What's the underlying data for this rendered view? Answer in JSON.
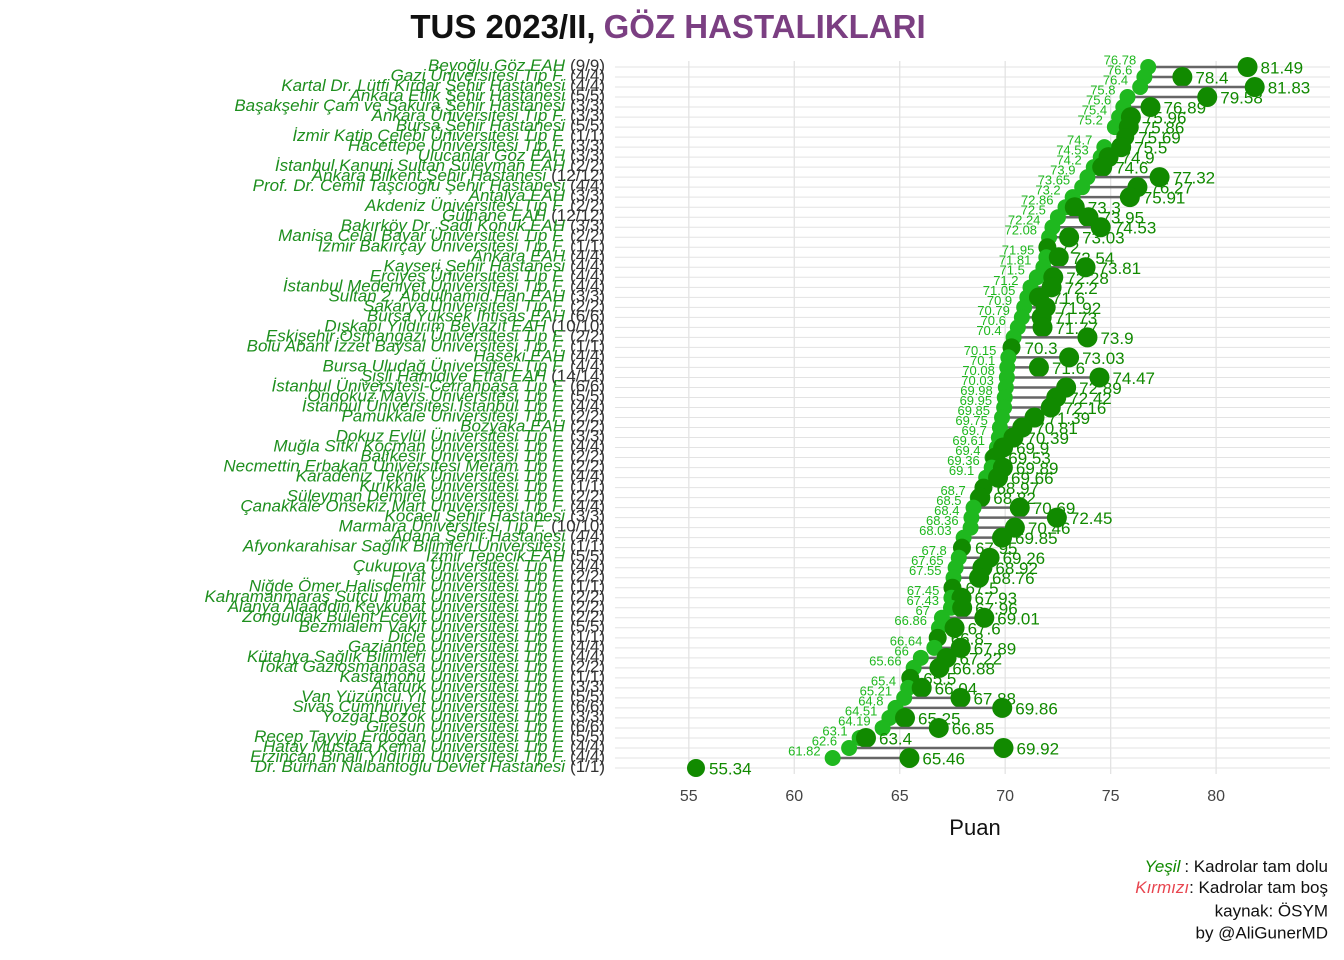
{
  "chart_data": {
    "type": "dumbbell",
    "title": "TUS 2023/II,",
    "title_highlight": "GÖZ HASTALIKLARI",
    "title_highlight_color": "#7b3f82",
    "x_label": "Puan",
    "xlim": [
      51.5,
      85.4
    ],
    "xticks": [
      55,
      60,
      65,
      70,
      75,
      80
    ],
    "grid": true,
    "low_color": "#1fb81f",
    "high_color": "#118a00",
    "segment_color": "#666666",
    "categories": [
      "Beyoğlu Göz EAH",
      "Gazi Üniversitesi Tıp F.",
      "Kartal Dr. Lütfi Kırdar Şehir Hastanesi",
      "Ankara Etlik Şehir Hastanesi",
      "Başakşehir Çam ve Sakura Şehir Hastanesi",
      "Ankara Üniversitesi Tıp F.",
      "Bursa Şehir Hastanesi",
      "İzmir Katip Çelebi Üniversitesi Tıp F.",
      "Hacettepe Üniversitesi Tıp F.",
      "Ulucanlar Göz EAH",
      "İstanbul Kanuni Sultan Süleyman EAH",
      "Ankara Bilkent Şehir Hastanesi",
      "Prof. Dr. Cemil Taşcıoğlu Şehir Hastanesi",
      "Antalya EAH",
      "Akdeniz Üniversitesi Tıp F.",
      "Gülhane EAH",
      "Bakırköy Dr. Sadi Konuk EAH",
      "Manisa Celal Bayar Üniversitesi Tıp F.",
      "İzmir Bakırçay Üniversitesi Tıp F.",
      "Ankara EAH",
      "Kayseri Şehir Hastanesi",
      "Erciyes Üniversitesi Tıp F.",
      "İstanbul Medeniyet Üniversitesi Tıp F.",
      "Sultan 2. Abdülhamid Han EAH",
      "Sakarya Üniversitesi Tıp F.",
      "Bursa Yüksek İhtisas EAH",
      "Dışkapı Yıldırım Beyazıt EAH",
      "Eskişehir Osmangazi Üniversitesi Tıp F.",
      "Bolu Abant İzzet Baysal Üniversitesi Tıp F.",
      "Haseki EAH",
      "Bursa Uludağ Üniversitesi Tıp F.",
      "Şişli Hamidiye Etfal EAH",
      "İstanbul Üniversitesi-Cerrahpaşa Tıp F.",
      "Ondokuz Mayıs Üniversitesi Tıp F.",
      "İstanbul Üniversitesi İstanbul Tıp F.",
      "Pamukkale Üniversitesi Tıp F.",
      "Bozyaka EAH",
      "Dokuz Eylül Üniversitesi Tıp F.",
      "Muğla Sıtkı Koçman Üniversitesi Tıp F.",
      "Balıkesir Üniversitesi Tıp F.",
      "Necmettin Erbakan Üniversitesi Meram Tıp F.",
      "Karadeniz Teknik Üniversitesi Tıp F.",
      "Kırıkkale Üniversitesi Tıp F.",
      "Süleyman Demirel Üniversitesi Tıp F.",
      "Çanakkale Onsekiz Mart Üniversitesi Tıp F.",
      "Kocaeli Şehir Hastanesi",
      "Marmara Üniversitesi Tıp F.",
      "Adana Şehir Hastanesi",
      "Afyonkarahisar Sağlık Bilimleri Üniversitesi",
      "İzmir Tepecik EAH",
      "Çukurova Üniversitesi Tıp F.",
      "Fırat Üniversitesi Tıp F.",
      "Niğde Ömer Halisdemir Üniversitesi Tıp F.",
      "Kahramanmaraş Sütçü İmam Üniversitesi Tıp F.",
      "Alanya Alaaddin Keykubat Üniversitesi Tıp F.",
      "Zonguldak Bülent Ecevit Üniversitesi Tıp F.",
      "Bezmialem Vakıf Üniversitesi Tıp F.",
      "Dicle Üniversitesi Tıp F.",
      "Gaziantep Üniversitesi Tıp F.",
      "Kütahya Sağlık Bilimleri Üniversitesi Tıp F.",
      "Tokat Gaziosmanpaşa Üniversitesi Tıp F.",
      "Kastamonu Üniversitesi Tıp F.",
      "Atatürk Üniversitesi Tıp F.",
      "Van Yüzüncü Yıl Üniversitesi Tıp F.",
      "Sivas Cumhuriyet Üniversitesi Tıp F.",
      "Yozgat Bozok Üniversitesi Tıp F.",
      "Giresun Üniversitesi Tıp F.",
      "Recep Tayyip Erdoğan Üniversitesi Tıp F.",
      "Hatay Mustafa Kemal Üniversitesi Tıp F.",
      "Erzincan Binali Yıldırım Üniversitesi Tıp F.",
      "Dr. Burhan Nalbantoğlu Devlet Hastanesi"
    ],
    "quotas": [
      "(9/9)",
      "(4/4)",
      "(4/4)",
      "(5/5)",
      "(3/3)",
      "(3/3)",
      "(5/5)",
      "(1/1)",
      "(3/3)",
      "(3/3)",
      "(2/2)",
      "(12/12)",
      "(4/4)",
      "(3/3)",
      "(2/2)",
      "(12/12)",
      "(3/3)",
      "(2/2)",
      "(1/1)",
      "(4/4)",
      "(4/4)",
      "(4/4)",
      "(4/4)",
      "(3/3)",
      "(2/2)",
      "(6/6)",
      "(10/10)",
      "(2/2)",
      "(1/1)",
      "(4/4)",
      "(4/4)",
      "(14/14)",
      "(6/6)",
      "(5/5)",
      "(4/4)",
      "(2/2)",
      "(2/2)",
      "(3/3)",
      "(4/4)",
      "(2/2)",
      "(2/2)",
      "(4/4)",
      "(1/1)",
      "(2/2)",
      "(4/4)",
      "(3/3)",
      "(10/10)",
      "(4/4)",
      "(1/1)",
      "(5/5)",
      "(4/4)",
      "(2/2)",
      "(1/1)",
      "(2/2)",
      "(2/2)",
      "(2/2)",
      "(5/5)",
      "(1/1)",
      "(4/4)",
      "(4/4)",
      "(2/2)",
      "(1/1)",
      "(3/3)",
      "(5/5)",
      "(6/6)",
      "(3/3)",
      "(6/6)",
      "(5/5)",
      "(4/4)",
      "(4/4)",
      "(1/1)"
    ],
    "low": [
      76.78,
      76.6,
      76.4,
      75.8,
      75.6,
      75.4,
      75.2,
      75.69,
      74.7,
      74.53,
      74.2,
      73.9,
      73.65,
      73.2,
      72.86,
      72.5,
      72.24,
      72.08,
      72.0,
      71.95,
      71.81,
      71.5,
      71.2,
      71.05,
      70.9,
      70.79,
      70.6,
      70.4,
      70.3,
      70.15,
      70.1,
      70.08,
      70.03,
      69.98,
      69.95,
      69.85,
      69.75,
      69.7,
      69.61,
      69.4,
      69.36,
      69.1,
      68.97,
      68.7,
      68.5,
      68.4,
      68.36,
      68.03,
      67.95,
      67.8,
      67.65,
      67.55,
      67.5,
      67.45,
      67.43,
      67.0,
      66.86,
      66.8,
      66.64,
      66.0,
      65.66,
      65.5,
      65.4,
      65.21,
      64.8,
      64.51,
      64.19,
      63.1,
      62.6,
      61.82,
      55.34
    ],
    "high": [
      81.49,
      78.4,
      81.83,
      79.58,
      76.89,
      75.96,
      75.86,
      75.69,
      75.5,
      74.9,
      74.6,
      77.32,
      76.27,
      75.91,
      73.3,
      73.95,
      74.53,
      73.03,
      72.0,
      72.54,
      73.81,
      72.28,
      72.2,
      71.6,
      71.92,
      71.73,
      71.77,
      73.9,
      70.3,
      73.03,
      71.6,
      74.47,
      72.89,
      72.42,
      72.16,
      71.39,
      70.81,
      70.39,
      69.9,
      69.53,
      69.89,
      69.66,
      68.97,
      68.82,
      70.69,
      72.45,
      70.46,
      69.85,
      67.95,
      69.26,
      68.92,
      68.76,
      67.5,
      67.93,
      67.96,
      69.01,
      67.6,
      66.8,
      67.89,
      67.22,
      66.88,
      65.5,
      66.04,
      67.88,
      69.86,
      65.25,
      66.85,
      63.4,
      69.92,
      65.46,
      55.34
    ],
    "caption": {
      "green_word": "Yeşil",
      "green_text": ": Kadrolar tam dolu",
      "red_word": "Kırmızı",
      "red_text": ": Kadrolar tam boş",
      "source": "kaynak: ÖSYM",
      "author": "by @AliGunerMD"
    }
  }
}
